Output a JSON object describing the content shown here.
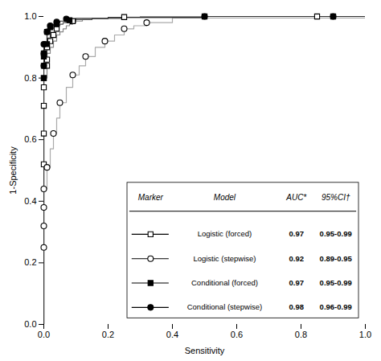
{
  "chart_data": {
    "type": "step",
    "xlabel": "Sensitivity",
    "ylabel": "1-Specificity",
    "xlim": [
      0.0,
      1.0
    ],
    "ylim": [
      0.0,
      1.0
    ],
    "xticks": [
      {
        "value": 0.0,
        "label": "0.0"
      },
      0.2,
      0.4,
      0.6,
      0.8,
      {
        "value": 1.0,
        "label": "1.0"
      }
    ],
    "yticks": [
      {
        "value": 0.0,
        "label": "0.0"
      },
      0.2,
      0.4,
      0.6,
      0.8,
      {
        "value": 1.0,
        "label": "1.0"
      }
    ],
    "grid": false,
    "legend": "lower right",
    "table_header": [
      "Marker",
      "Model",
      "AUC*",
      "95%CI†"
    ],
    "series": [
      {
        "name": "Logistic (forced)",
        "color": "#888888",
        "marker": "square-open",
        "auc": "0.97",
        "ci": "0.95-0.99",
        "x": [
          0.0,
          0.0,
          0.0,
          0.0,
          0.0,
          0.0,
          0.0,
          0.0,
          0.0,
          0.01,
          0.01,
          0.01,
          0.01,
          0.02,
          0.02,
          0.03,
          0.03,
          0.04,
          0.04,
          0.05,
          0.06,
          0.07,
          0.08,
          0.09,
          0.1,
          0.12,
          0.15,
          0.2,
          0.25,
          0.3,
          0.85,
          0.9,
          1.0
        ],
        "values": [
          0.0,
          0.52,
          0.57,
          0.62,
          0.66,
          0.71,
          0.75,
          0.77,
          0.8,
          0.82,
          0.84,
          0.86,
          0.88,
          0.89,
          0.9,
          0.91,
          0.92,
          0.93,
          0.94,
          0.95,
          0.96,
          0.97,
          0.975,
          0.98,
          0.985,
          0.99,
          0.993,
          0.996,
          0.998,
          1.0,
          1.0,
          1.0,
          1.0
        ],
        "markers": {
          "x": [
            0.0,
            0.0,
            0.0,
            0.0,
            0.0,
            0.0,
            0.01,
            0.01,
            0.01,
            0.02,
            0.03,
            0.04,
            0.09,
            0.25,
            0.85
          ],
          "values": [
            0.52,
            0.62,
            0.71,
            0.77,
            0.8,
            0.88,
            0.84,
            0.86,
            0.9,
            0.92,
            0.94,
            0.96,
            0.985,
            0.998,
            1.0
          ]
        }
      },
      {
        "name": "Logistic (stepwise)",
        "color": "#aaaaaa",
        "marker": "circle-open",
        "auc": "0.92",
        "ci": "0.89-0.95",
        "x": [
          0.0,
          0.0,
          0.0,
          0.0,
          0.0,
          0.0,
          0.01,
          0.02,
          0.03,
          0.04,
          0.05,
          0.07,
          0.09,
          0.11,
          0.13,
          0.16,
          0.19,
          0.22,
          0.25,
          0.28,
          0.32,
          0.4,
          1.0
        ],
        "values": [
          0.0,
          0.25,
          0.32,
          0.38,
          0.41,
          0.44,
          0.51,
          0.57,
          0.62,
          0.67,
          0.72,
          0.77,
          0.81,
          0.84,
          0.87,
          0.9,
          0.92,
          0.94,
          0.96,
          0.97,
          0.98,
          0.995,
          1.0
        ],
        "markers": {
          "x": [
            0.0,
            0.0,
            0.0,
            0.0,
            0.01,
            0.03,
            0.05,
            0.09,
            0.13,
            0.19,
            0.25,
            0.32
          ],
          "values": [
            0.25,
            0.32,
            0.38,
            0.44,
            0.51,
            0.62,
            0.72,
            0.81,
            0.87,
            0.92,
            0.96,
            0.98
          ]
        }
      },
      {
        "name": "Conditional (forced)",
        "color": "#555555",
        "marker": "square-filled",
        "auc": "0.97",
        "ci": "0.95-0.99",
        "x": [
          0.0,
          0.0,
          0.0,
          0.0,
          0.01,
          0.01,
          0.01,
          0.02,
          0.02,
          0.03,
          0.04,
          0.05,
          0.06,
          0.08,
          0.1,
          0.15,
          0.25,
          0.5,
          0.9,
          1.0
        ],
        "values": [
          0.0,
          0.8,
          0.84,
          0.87,
          0.89,
          0.91,
          0.93,
          0.94,
          0.96,
          0.965,
          0.97,
          0.975,
          0.98,
          0.985,
          0.99,
          0.994,
          0.997,
          1.0,
          1.0,
          1.0
        ],
        "markers": {
          "x": [
            0.0,
            0.0,
            0.0,
            0.01,
            0.01,
            0.02,
            0.04,
            0.08,
            0.5,
            0.9
          ],
          "values": [
            0.8,
            0.84,
            0.87,
            0.91,
            0.95,
            0.965,
            0.975,
            0.988,
            1.0,
            1.0
          ]
        }
      },
      {
        "name": "Conditional (stepwise)",
        "color": "#333333",
        "marker": "circle-filled",
        "auc": "0.98",
        "ci": "0.96-0.99",
        "x": [
          0.0,
          0.0,
          0.0,
          0.0,
          0.01,
          0.01,
          0.02,
          0.02,
          0.03,
          0.04,
          0.05,
          0.07,
          0.1,
          0.2,
          0.5,
          0.9,
          1.0
        ],
        "values": [
          0.0,
          0.84,
          0.88,
          0.91,
          0.93,
          0.95,
          0.96,
          0.97,
          0.975,
          0.98,
          0.985,
          0.99,
          0.994,
          0.997,
          1.0,
          1.0,
          1.0
        ],
        "markers": {
          "x": [
            0.0,
            0.0,
            0.0,
            0.01,
            0.02,
            0.04,
            0.07,
            0.5,
            0.9
          ],
          "values": [
            0.84,
            0.88,
            0.91,
            0.95,
            0.97,
            0.982,
            0.992,
            1.0,
            1.0
          ]
        }
      }
    ]
  }
}
